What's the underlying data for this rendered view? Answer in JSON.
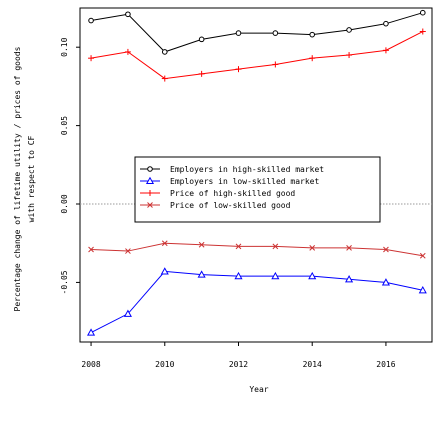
{
  "chart_data": {
    "type": "line",
    "xlabel": "Year",
    "ylabel_line1": "Percentage change of lifetime utility / prices of goods",
    "ylabel_line2": "with respect to CF",
    "x_ticks": [
      "2008",
      "2010",
      "2012",
      "2014",
      "2016"
    ],
    "y_ticks": [
      "-0.05",
      "0.00",
      "0.05",
      "0.10"
    ],
    "xlim": [
      2007.7,
      2017.25
    ],
    "ylim": [
      -0.088,
      0.125
    ],
    "grid": false,
    "zero_line": true,
    "legend_position": "center",
    "x": [
      2008,
      2009,
      2010,
      2011,
      2012,
      2013,
      2014,
      2015,
      2016,
      2017
    ],
    "series": [
      {
        "name": "Employers in high-skilled market",
        "color": "#000000",
        "marker": "circle",
        "values": [
          0.117,
          0.121,
          0.097,
          0.105,
          0.109,
          0.109,
          0.108,
          0.111,
          0.115,
          0.122
        ]
      },
      {
        "name": "Employers in low-skilled market",
        "color": "#0000ff",
        "marker": "triangle",
        "values": [
          -0.082,
          -0.07,
          -0.043,
          -0.045,
          -0.046,
          -0.046,
          -0.046,
          -0.048,
          -0.05,
          -0.055
        ]
      },
      {
        "name": "Price of high-skilled good",
        "color": "#ff0000",
        "marker": "plus",
        "values": [
          0.093,
          0.097,
          0.08,
          0.083,
          0.086,
          0.089,
          0.093,
          0.095,
          0.098,
          0.11
        ]
      },
      {
        "name": "Price of low-skilled good",
        "color": "#cc3333",
        "marker": "cross",
        "values": [
          -0.029,
          -0.03,
          -0.025,
          -0.026,
          -0.027,
          -0.027,
          -0.028,
          -0.028,
          -0.029,
          -0.033
        ]
      }
    ]
  }
}
